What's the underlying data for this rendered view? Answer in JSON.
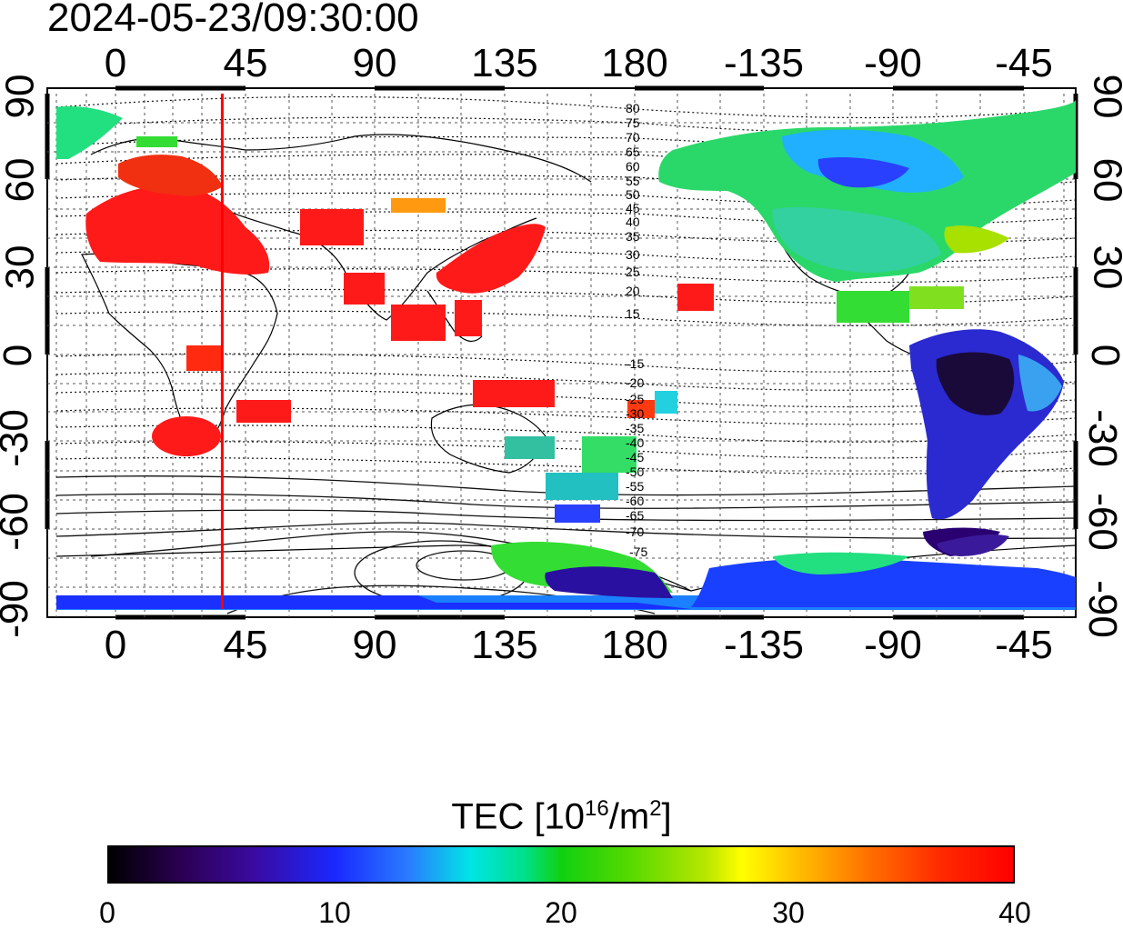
{
  "timestamp": "2024-05-23/09:30:00",
  "x_axis": {
    "ticks": [
      "0",
      "45",
      "90",
      "135",
      "180",
      "-135",
      "-90",
      "-45"
    ]
  },
  "y_axis": {
    "ticks": [
      "90",
      "60",
      "30",
      "0",
      "-30",
      "-60",
      "-90"
    ]
  },
  "contour_labels": {
    "north": [
      "80",
      "75",
      "70",
      "65",
      "60",
      "55",
      "50",
      "45",
      "40",
      "35",
      "30",
      "25",
      "20",
      "15"
    ],
    "south": [
      "-15",
      "-20",
      "-25",
      "-30",
      "-35",
      "-40",
      "-45",
      "-50",
      "-55",
      "-60",
      "-65",
      "-70",
      "-75"
    ]
  },
  "colorbar": {
    "title_prefix": "TEC  [10",
    "title_exp": "16",
    "title_mid": "/m",
    "title_exp2": "2",
    "title_suffix": "]",
    "labels": [
      "0",
      "10",
      "20",
      "30",
      "40"
    ],
    "range": [
      0,
      40
    ]
  },
  "marker_line": {
    "longitude": 37,
    "color": "#ff0000"
  },
  "colors": {
    "high_tec": "#ff1a1a",
    "mid_tec_green": "#33dd33",
    "mid_tec_cyan": "#22d0e0",
    "low_tec_blue": "#2040ff",
    "very_low_tec": "#2a0070"
  }
}
